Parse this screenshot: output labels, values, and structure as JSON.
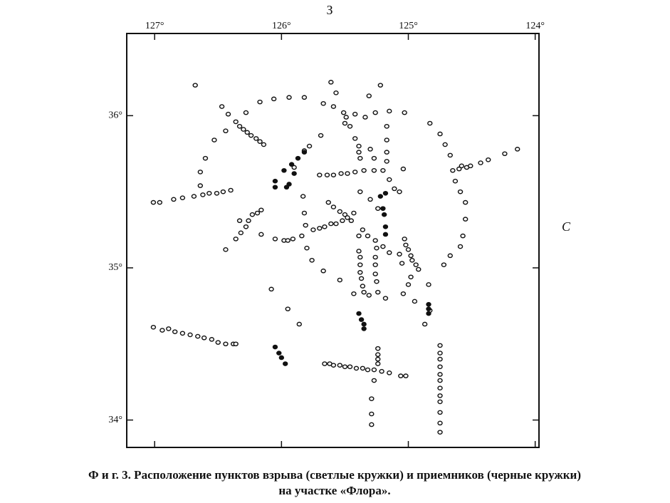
{
  "chart_data": {
    "type": "scatter",
    "top_label": "З",
    "right_label": "С",
    "caption": [
      "Ф и г. 3. Расположение пунктов взрыва (светлые кружки) и приемников (черные кружки)",
      "на участке «Флора»."
    ],
    "xlim": [
      127.22,
      123.97
    ],
    "ylim": [
      33.82,
      36.54
    ],
    "xticks": [
      {
        "value": 127,
        "label": "127°"
      },
      {
        "value": 126,
        "label": "126°"
      },
      {
        "value": 125,
        "label": "125°"
      },
      {
        "value": 124,
        "label": "124°"
      }
    ],
    "yticks": [
      {
        "value": 36,
        "label": "36°"
      },
      {
        "value": 35,
        "label": "35°"
      },
      {
        "value": 34,
        "label": "34°"
      }
    ],
    "series": [
      {
        "marker": "open",
        "color": "#111111",
        "x": [
          127.01,
          126.94,
          126.89,
          126.84,
          126.78,
          126.72,
          126.66,
          126.61,
          126.55,
          126.5,
          126.44,
          126.38,
          126.36,
          127.01,
          126.96,
          126.85,
          126.78,
          126.69,
          126.62,
          126.57,
          126.51,
          126.46,
          126.4,
          126.68,
          126.47,
          126.42,
          126.28,
          126.17,
          126.06,
          125.94,
          125.82,
          126.53,
          126.44,
          126.6,
          126.64,
          126.64,
          126.36,
          126.33,
          126.3,
          126.27,
          126.24,
          126.2,
          126.17,
          126.14,
          125.61,
          125.22,
          125.57,
          125.67,
          125.59,
          125.31,
          125.51,
          125.49,
          125.5,
          125.46,
          125.42,
          125.34,
          125.26,
          125.15,
          125.03,
          124.83,
          124.75,
          124.71,
          124.67,
          124.65,
          124.63,
          124.59,
          124.55,
          124.55,
          124.57,
          124.59,
          124.67,
          124.72,
          124.6,
          124.58,
          124.54,
          124.51,
          124.43,
          124.37,
          124.24,
          124.14,
          125.78,
          125.82,
          125.69,
          125.9,
          125.7,
          125.64,
          125.59,
          125.53,
          125.48,
          125.42,
          125.35,
          125.27,
          125.2,
          125.42,
          125.39,
          125.39,
          125.38,
          125.3,
          125.27,
          125.17,
          125.17,
          125.17,
          125.17,
          125.04,
          125.15,
          125.11,
          125.07,
          125.3,
          125.24,
          125.38,
          124.98,
          125.63,
          125.59,
          125.54,
          125.5,
          125.45,
          125.36,
          125.32,
          125.26,
          125.2,
          125.15,
          125.75,
          125.7,
          125.66,
          125.61,
          125.57,
          125.52,
          125.48,
          125.43,
          125.39,
          125.39,
          125.38,
          125.38,
          125.38,
          125.37,
          125.36,
          125.35,
          125.25,
          125.26,
          125.26,
          125.26,
          125.25,
          125.24,
          125.18,
          125.03,
          125.02,
          125.0,
          124.98,
          124.97,
          124.94,
          124.92,
          125.07,
          125.05,
          125.0,
          125.04,
          124.95,
          124.84,
          124.83,
          124.87,
          125.83,
          125.82,
          125.81,
          125.84,
          125.8,
          125.76,
          125.67,
          125.54,
          125.43,
          125.31,
          126.05,
          125.98,
          125.95,
          125.91,
          126.44,
          126.36,
          126.32,
          126.28,
          126.26,
          126.23,
          126.19,
          126.16,
          126.33,
          126.16,
          126.08,
          125.95,
          125.86,
          125.66,
          125.62,
          125.59,
          125.54,
          125.5,
          125.46,
          125.41,
          125.36,
          125.32,
          125.27,
          125.21,
          125.15,
          125.24,
          125.24,
          125.24,
          125.24,
          125.27,
          125.29,
          125.29,
          125.29,
          125.06,
          125.02,
          124.75,
          124.75,
          124.75,
          124.75,
          124.75,
          124.75,
          124.75,
          124.75,
          124.75,
          124.75,
          124.75,
          124.75
        ],
        "y": [
          34.61,
          34.59,
          34.6,
          34.58,
          34.57,
          34.56,
          34.55,
          34.54,
          34.53,
          34.51,
          34.5,
          34.5,
          34.5,
          35.43,
          35.43,
          35.45,
          35.46,
          35.47,
          35.48,
          35.49,
          35.49,
          35.5,
          35.51,
          36.2,
          36.06,
          36.01,
          36.02,
          36.09,
          36.11,
          36.12,
          36.12,
          35.84,
          35.9,
          35.72,
          35.63,
          35.54,
          35.96,
          35.93,
          35.91,
          35.89,
          35.87,
          35.85,
          35.83,
          35.81,
          36.22,
          36.2,
          36.15,
          36.08,
          36.06,
          36.13,
          36.02,
          35.99,
          35.95,
          35.93,
          36.01,
          35.99,
          36.02,
          36.03,
          36.02,
          35.95,
          35.88,
          35.81,
          35.74,
          35.64,
          35.57,
          35.5,
          35.43,
          35.32,
          35.21,
          35.14,
          35.08,
          35.02,
          35.65,
          35.67,
          35.66,
          35.67,
          35.69,
          35.71,
          35.75,
          35.78,
          35.8,
          35.77,
          35.87,
          35.66,
          35.61,
          35.61,
          35.61,
          35.62,
          35.62,
          35.63,
          35.64,
          35.64,
          35.64,
          35.85,
          35.8,
          35.76,
          35.72,
          35.78,
          35.72,
          35.93,
          35.84,
          35.76,
          35.7,
          35.65,
          35.58,
          35.52,
          35.5,
          35.45,
          35.39,
          35.5,
          34.94,
          35.43,
          35.4,
          35.37,
          35.35,
          35.31,
          35.25,
          35.21,
          35.18,
          35.14,
          35.1,
          35.25,
          35.26,
          35.27,
          35.29,
          35.29,
          35.31,
          35.33,
          35.36,
          35.21,
          35.11,
          35.07,
          35.02,
          34.97,
          34.93,
          34.88,
          34.84,
          35.13,
          35.07,
          35.02,
          34.96,
          34.91,
          34.84,
          34.8,
          35.19,
          35.15,
          35.12,
          35.08,
          35.05,
          35.02,
          34.99,
          35.09,
          35.03,
          34.89,
          34.83,
          34.78,
          34.89,
          34.72,
          34.63,
          35.47,
          35.36,
          35.28,
          35.21,
          35.13,
          35.05,
          34.98,
          34.92,
          34.83,
          34.82,
          35.19,
          35.18,
          35.18,
          35.19,
          35.12,
          35.19,
          35.23,
          35.27,
          35.31,
          35.35,
          35.36,
          35.38,
          35.31,
          35.22,
          34.86,
          34.73,
          34.63,
          34.37,
          34.37,
          34.36,
          34.36,
          34.35,
          34.35,
          34.34,
          34.34,
          34.33,
          34.33,
          34.32,
          34.31,
          34.47,
          34.43,
          34.4,
          34.37,
          34.26,
          34.14,
          34.04,
          33.97,
          34.29,
          34.29,
          34.49,
          34.44,
          34.4,
          34.35,
          34.3,
          34.26,
          34.21,
          34.16,
          34.12,
          34.05,
          33.98,
          33.92
        ]
      },
      {
        "marker": "filled",
        "color": "#111111",
        "x": [
          126.05,
          126.05,
          125.98,
          125.92,
          125.87,
          125.82,
          125.9,
          125.96,
          125.94,
          125.22,
          125.18,
          125.2,
          125.19,
          125.18,
          125.18,
          125.39,
          125.37,
          125.35,
          125.35,
          124.84,
          124.84,
          124.84,
          126.05,
          126.02,
          126.0,
          125.97
        ],
        "y": [
          35.57,
          35.53,
          35.64,
          35.68,
          35.72,
          35.76,
          35.62,
          35.53,
          35.55,
          35.47,
          35.49,
          35.39,
          35.35,
          35.27,
          35.22,
          34.7,
          34.66,
          34.63,
          34.6,
          34.76,
          34.73,
          34.7,
          34.48,
          34.44,
          34.41,
          34.37
        ]
      }
    ]
  }
}
